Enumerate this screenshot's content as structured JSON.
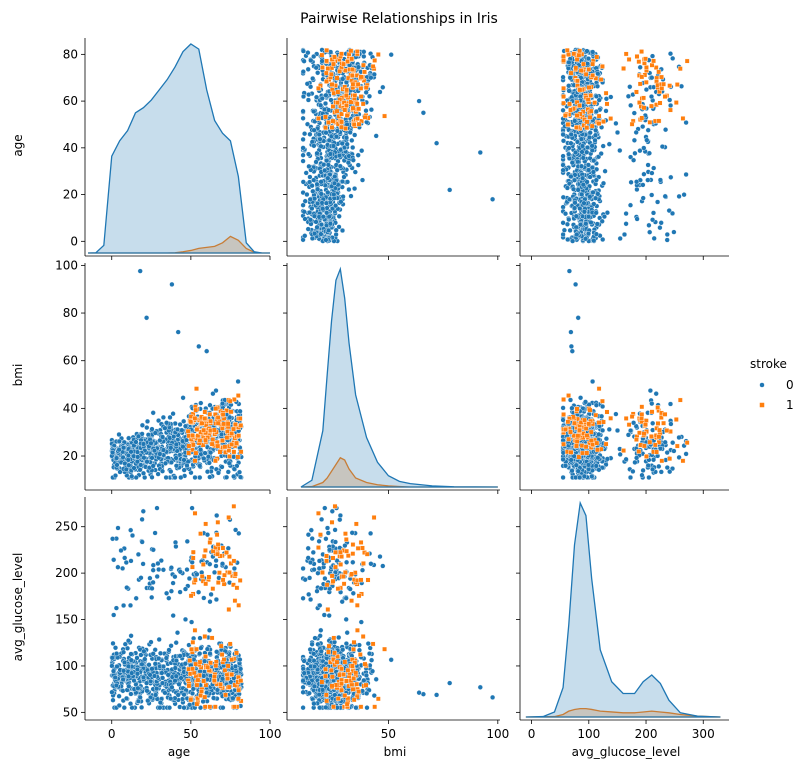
{
  "title": "Pairwise Relationships in Iris",
  "colors": {
    "class0": "#1f77b4",
    "class1": "#ff7f0e",
    "class0_fill": "#1f77b4",
    "class1_fill": "#ff7f0e"
  },
  "chart_data": {
    "type": "scatter",
    "kind": "pairplot",
    "variables": [
      "age",
      "bmi",
      "avg_glucose_level"
    ],
    "hue": "stroke",
    "hue_levels": [
      "0",
      "1"
    ],
    "legend": {
      "title": "stroke",
      "labels": [
        "0",
        "1"
      ],
      "placement": "center-right"
    },
    "axes": {
      "age": {
        "label": "age",
        "lim": [
          -5,
          87
        ],
        "xlim": [
          -15,
          100
        ],
        "yticks": [
          0,
          20,
          40,
          60,
          80
        ],
        "xticks": [
          0,
          50,
          100
        ]
      },
      "bmi": {
        "label": "bmi",
        "lim": [
          7,
          101
        ],
        "xlim": [
          5,
          101
        ],
        "yticks": [
          20,
          40,
          60,
          80,
          100
        ],
        "xticks": [
          50,
          100
        ]
      },
      "avg_glucose_level": {
        "label": "avg_glucose_level",
        "lim": [
          45,
          282
        ],
        "xlim": [
          -15,
          345
        ],
        "yticks": [
          50,
          100,
          150,
          200,
          250
        ],
        "xticks": [
          0,
          100,
          200,
          300
        ]
      }
    },
    "kde": {
      "age": {
        "grid": [
          -15,
          -10,
          -5,
          0,
          5,
          10,
          15,
          20,
          25,
          30,
          35,
          40,
          45,
          50,
          55,
          60,
          65,
          70,
          75,
          80,
          85,
          90,
          95,
          100
        ],
        "class0": [
          0,
          0.1,
          3,
          38,
          44,
          48,
          55,
          57,
          60,
          64,
          68,
          73,
          79,
          82,
          80,
          64,
          52,
          47,
          44,
          30,
          4,
          0.5,
          0,
          0
        ],
        "class1": [
          0,
          0,
          0,
          0,
          0,
          0,
          0,
          0,
          0,
          0,
          0,
          0.1,
          0.5,
          1,
          1.8,
          2.2,
          2.6,
          4,
          6.5,
          5,
          1.8,
          0.3,
          0,
          0
        ]
      },
      "bmi": {
        "grid": [
          10,
          15,
          20,
          22,
          24,
          26,
          28,
          30,
          32,
          35,
          40,
          45,
          50,
          55,
          60,
          70,
          80,
          100
        ],
        "class0": [
          0,
          3,
          25,
          50,
          74,
          92,
          97,
          84,
          64,
          41,
          22,
          11,
          5,
          2.5,
          1.5,
          0.5,
          0.1,
          0
        ],
        "class1": [
          0,
          0.2,
          2,
          4,
          7,
          10,
          13,
          12,
          8,
          4,
          2,
          1,
          0.5,
          0.2,
          0,
          0,
          0,
          0
        ]
      },
      "avg_glucose_level": {
        "grid": [
          -10,
          20,
          40,
          55,
          65,
          75,
          85,
          95,
          105,
          120,
          140,
          160,
          180,
          195,
          210,
          225,
          240,
          260,
          290,
          330
        ],
        "class0": [
          0,
          0.5,
          6,
          35,
          110,
          205,
          255,
          240,
          165,
          80,
          42,
          28,
          28,
          42,
          50,
          40,
          20,
          5,
          1,
          0
        ],
        "class1": [
          0,
          0.2,
          0.5,
          3,
          7,
          9,
          10,
          10,
          9,
          7,
          6,
          5,
          5,
          6,
          7,
          6,
          5,
          3,
          1,
          0
        ]
      }
    },
    "scatter_clusters": {
      "age_vs_bmi_class0": {
        "x_range": [
          0,
          82
        ],
        "y_center_at_x0": 19,
        "y_center_at_x80": 30,
        "y_spread": 7,
        "count": 900,
        "outliers": [
          [
            18,
            97.6
          ],
          [
            38,
            92
          ],
          [
            22,
            78
          ],
          [
            42,
            72
          ],
          [
            55,
            66
          ],
          [
            60,
            64
          ]
        ]
      },
      "age_vs_bmi_class1": {
        "x_range": [
          40,
          82
        ],
        "y_center": 31,
        "y_spread": 6,
        "count": 140
      },
      "age_vs_glucose_class0": {
        "x_range": [
          0,
          82
        ],
        "y_center": 90,
        "y_spread": 22,
        "high_mode": [
          200,
          30,
          0.12
        ],
        "count": 900
      },
      "age_vs_glucose_class1": {
        "x_range": [
          45,
          82
        ],
        "modes": [
          [
            90,
            25,
            0.6
          ],
          [
            210,
            30,
            0.4
          ]
        ],
        "count": 140
      },
      "bmi_vs_glucose_class0": {
        "x_center": 29,
        "x_spread": 7,
        "modes": [
          [
            92,
            22,
            0.85
          ],
          [
            210,
            30,
            0.15
          ]
        ],
        "count": 900,
        "outliers": [
          [
            97,
            62
          ],
          [
            92,
            58
          ],
          [
            78,
            70
          ],
          [
            72,
            210
          ]
        ]
      },
      "bmi_vs_glucose_class1": {
        "x_center": 30,
        "x_spread": 5,
        "modes": [
          [
            90,
            25,
            0.6
          ],
          [
            210,
            30,
            0.4
          ]
        ],
        "count": 140
      }
    }
  }
}
